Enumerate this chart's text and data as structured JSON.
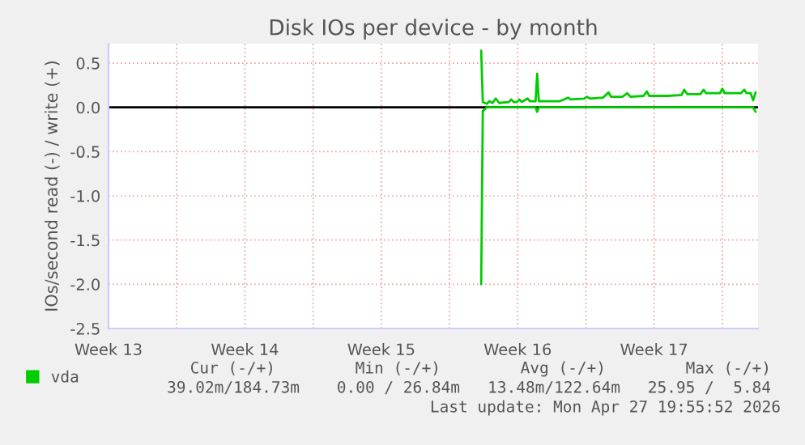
{
  "chart_data": {
    "type": "line",
    "title": "Disk IOs per device - by month",
    "ylabel": "IOs/second read (-) / write (+)",
    "x": [
      "2026-04-13T15:00",
      "2026-04-13T17:00",
      "2026-04-13T22:00",
      "2026-04-14T01:00",
      "2026-04-14T05:00",
      "2026-04-14T09:00",
      "2026-04-14T13:00",
      "2026-04-15T01:00",
      "2026-04-15T04:00",
      "2026-04-15T07:00",
      "2026-04-15T11:00",
      "2026-04-15T14:00",
      "2026-04-15T17:00",
      "2026-04-16T00:00",
      "2026-04-16T03:00",
      "2026-04-16T10:00",
      "2026-04-16T12:00",
      "2026-04-16T14:00",
      "2026-04-16T23:00",
      "2026-04-17T16:00",
      "2026-04-18T02:00",
      "2026-04-18T05:00",
      "2026-04-18T22:00",
      "2026-04-19T01:00",
      "2026-04-19T05:00",
      "2026-04-19T21:00",
      "2026-04-20T04:00",
      "2026-04-20T07:00",
      "2026-04-20T21:00",
      "2026-04-21T03:00",
      "2026-04-21T07:00",
      "2026-04-21T23:00",
      "2026-04-22T03:00",
      "2026-04-22T06:00",
      "2026-04-23T02:00",
      "2026-04-23T05:00",
      "2026-04-23T22:00",
      "2026-04-24T01:00",
      "2026-04-24T05:00",
      "2026-04-24T21:00",
      "2026-04-25T01:00",
      "2026-04-25T04:00",
      "2026-04-25T21:00",
      "2026-04-26T00:00",
      "2026-04-26T03:00",
      "2026-04-26T23:00",
      "2026-04-27T03:00",
      "2026-04-27T06:00",
      "2026-04-27T11:00",
      "2026-04-27T14:00",
      "2026-04-27T17:00"
    ],
    "series": [
      {
        "name": "vda",
        "color": "#00cc00",
        "values": [
          0.64,
          0.06,
          0.04,
          0.07,
          0.05,
          0.1,
          0.05,
          0.06,
          0.09,
          0.06,
          0.06,
          0.09,
          0.06,
          0.1,
          0.07,
          0.07,
          0.38,
          0.07,
          0.07,
          0.07,
          0.11,
          0.09,
          0.1,
          0.12,
          0.1,
          0.11,
          0.17,
          0.12,
          0.12,
          0.16,
          0.12,
          0.13,
          0.18,
          0.13,
          0.13,
          0.13,
          0.14,
          0.2,
          0.15,
          0.15,
          0.2,
          0.16,
          0.16,
          0.21,
          0.16,
          0.16,
          0.2,
          0.16,
          0.16,
          0.08,
          0.17
        ]
      },
      {
        "color": "#00cc00",
        "x": [
          "2026-04-13T15:00",
          "2026-04-13T17:00",
          "2026-04-13T22:00",
          "2026-04-16T10:00",
          "2026-04-16T12:00",
          "2026-04-16T14:00",
          "2026-04-27T14:00",
          "2026-04-27T17:00"
        ],
        "values": [
          -2.0,
          -0.04,
          0.0,
          0.0,
          -0.05,
          0.0,
          0.0,
          -0.05
        ]
      }
    ],
    "xlim": [
      "2026-03-25T12:00",
      "2026-04-27T20:00"
    ],
    "xticks": [
      {
        "value": "2026-03-25T12:00",
        "label": "Week 13"
      },
      {
        "value": "2026-03-29T00:00",
        "label": null
      },
      {
        "value": "2026-04-01T12:00",
        "label": "Week 14"
      },
      {
        "value": "2026-04-05T00:00",
        "label": null
      },
      {
        "value": "2026-04-08T12:00",
        "label": "Week 15"
      },
      {
        "value": "2026-04-12T00:00",
        "label": null
      },
      {
        "value": "2026-04-15T12:00",
        "label": "Week 16"
      },
      {
        "value": "2026-04-19T00:00",
        "label": null
      },
      {
        "value": "2026-04-22T12:00",
        "label": "Week 17"
      },
      {
        "value": "2026-04-26T00:00",
        "label": null
      }
    ],
    "ylim": [
      -2.5,
      0.72
    ],
    "yticks": [
      {
        "value": -2.5,
        "label": "-2.5"
      },
      {
        "value": -2.0,
        "label": "-2.0"
      },
      {
        "value": -1.5,
        "label": "-1.5"
      },
      {
        "value": -1.0,
        "label": "-1.0"
      },
      {
        "value": -0.5,
        "label": "-0.5"
      },
      {
        "value": 0.0,
        "label": "0.0"
      },
      {
        "value": 0.5,
        "label": "0.5"
      }
    ],
    "ref_lines": [
      {
        "axis": "y",
        "value": 0,
        "color": "#000000"
      }
    ],
    "grid": true,
    "legend": "bottom left",
    "annotations": [
      "Cur (-/+)",
      "Min (-/+)",
      "Avg (-/+)",
      "Max (-/+)",
      "39.02m/184.73m",
      "0.00 / 26.84m",
      "13.48m/122.64m",
      "25.95 /  5.84",
      "Last update: Mon Apr 27 19:55:52 2026"
    ]
  }
}
